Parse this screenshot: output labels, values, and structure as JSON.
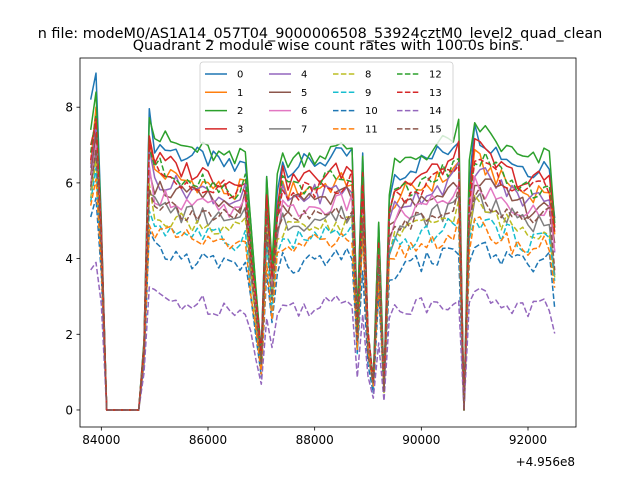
{
  "figure": {
    "suptitle": "n file: modeM0/AS1A14_057T04_9000006508_53924cztM0_level2_quad_clean",
    "subtitle": "Quadrant 2 module wise count rates with 100.0s bins.",
    "offset_label": "+4.956e8"
  },
  "chart_data": {
    "type": "line",
    "title": "Quadrant 2 module wise count rates with 100.0s bins.",
    "xlabel": "",
    "ylabel": "",
    "x_offset": 495600000,
    "xlim": [
      83600,
      92900
    ],
    "ylim": [
      -0.45,
      9.3
    ],
    "xticks": [
      84000,
      86000,
      88000,
      90000,
      92000
    ],
    "xtick_labels": [
      "84000",
      "86000",
      "88000",
      "90000",
      "92000"
    ],
    "yticks": [
      0,
      2,
      4,
      6,
      8
    ],
    "ytick_labels": [
      "0",
      "2",
      "4",
      "6",
      "8"
    ],
    "grid": false,
    "legend": {
      "placement": "top-center",
      "columns": 4
    },
    "segments": [
      {
        "x_start": 83800,
        "x_end": 84000,
        "step": 100,
        "count": 3
      },
      {
        "x_start": 84100,
        "x_end": 84700,
        "step": 100,
        "count": 7
      },
      {
        "x_start": 84800,
        "x_end": 92500,
        "step": 100,
        "count": 78
      }
    ],
    "series": [
      {
        "name": "0",
        "color": "#1f77b4",
        "dash": "solid",
        "level": 6.9,
        "seg1": [
          8.2,
          8.9,
          5.0
        ],
        "peak_factor": 1.0
      },
      {
        "name": "1",
        "color": "#ff7f0e",
        "dash": "solid",
        "level": 6.2,
        "seg1": [
          6.5,
          8.0,
          4.6
        ],
        "peak_factor": 0.95
      },
      {
        "name": "2",
        "color": "#2ca02c",
        "dash": "solid",
        "level": 7.1,
        "seg1": [
          7.4,
          8.4,
          4.9
        ],
        "peak_factor": 1.0
      },
      {
        "name": "3",
        "color": "#d62728",
        "dash": "solid",
        "level": 6.5,
        "seg1": [
          7.0,
          7.6,
          4.8
        ],
        "peak_factor": 0.97
      },
      {
        "name": "4",
        "color": "#9467bd",
        "dash": "solid",
        "level": 6.0,
        "seg1": [
          6.4,
          7.5,
          4.5
        ],
        "peak_factor": 0.95
      },
      {
        "name": "5",
        "color": "#8c564b",
        "dash": "solid",
        "level": 5.8,
        "seg1": [
          6.2,
          7.3,
          4.4
        ],
        "peak_factor": 0.95
      },
      {
        "name": "6",
        "color": "#e377c2",
        "dash": "solid",
        "level": 5.6,
        "seg1": [
          6.0,
          7.0,
          4.3
        ],
        "peak_factor": 0.95
      },
      {
        "name": "7",
        "color": "#7f7f7f",
        "dash": "solid",
        "level": 5.3,
        "seg1": [
          5.8,
          6.8,
          4.2
        ],
        "peak_factor": 0.95
      },
      {
        "name": "8",
        "color": "#bcbd22",
        "dash": "dashed",
        "level": 5.1,
        "seg1": [
          5.6,
          6.6,
          4.0
        ],
        "peak_factor": 0.93
      },
      {
        "name": "9",
        "color": "#17becf",
        "dash": "dashed",
        "level": 4.8,
        "seg1": [
          5.5,
          6.4,
          3.9
        ],
        "peak_factor": 0.93
      },
      {
        "name": "10",
        "color": "#1f77b4",
        "dash": "dashed",
        "level": 4.1,
        "seg1": [
          5.1,
          5.6,
          3.6
        ],
        "peak_factor": 0.9
      },
      {
        "name": "11",
        "color": "#ff7f0e",
        "dash": "dashed",
        "level": 4.6,
        "seg1": [
          5.4,
          6.1,
          3.8
        ],
        "peak_factor": 0.92
      },
      {
        "name": "12",
        "color": "#2ca02c",
        "dash": "dashed",
        "level": 6.3,
        "seg1": [
          6.8,
          7.8,
          4.7
        ],
        "peak_factor": 0.96
      },
      {
        "name": "13",
        "color": "#d62728",
        "dash": "dashed",
        "level": 6.2,
        "seg1": [
          6.6,
          7.7,
          4.6
        ],
        "peak_factor": 0.96
      },
      {
        "name": "14",
        "color": "#9467bd",
        "dash": "dashed",
        "level": 2.9,
        "seg1": [
          3.7,
          3.9,
          2.8
        ],
        "peak_factor": 0.85
      },
      {
        "name": "15",
        "color": "#8c564b",
        "dash": "dashed",
        "level": 5.4,
        "seg1": [
          5.9,
          6.9,
          4.2
        ],
        "peak_factor": 0.94
      }
    ],
    "profile": {
      "x": [
        84800,
        84900,
        85000,
        85500,
        86000,
        86500,
        86700,
        86800,
        86900,
        87000,
        87100,
        87200,
        87300,
        87400,
        87500,
        88000,
        88500,
        88700,
        88800,
        88900,
        89000,
        89100,
        89200,
        89300,
        89400,
        89500,
        90000,
        90500,
        90600,
        90700,
        90800,
        90900,
        91000,
        91500,
        92000,
        92400,
        92500
      ],
      "factor": [
        0.95,
        1.12,
        1.02,
        0.98,
        0.96,
        0.92,
        0.96,
        0.7,
        0.45,
        0.22,
        0.9,
        0.55,
        0.85,
        0.95,
        0.93,
        0.95,
        0.97,
        0.98,
        0.35,
        0.95,
        0.3,
        0.12,
        0.7,
        0.1,
        0.82,
        0.9,
        0.95,
        1.0,
        1.02,
        1.05,
        0.0,
        0.9,
        1.07,
        0.98,
        0.92,
        0.95,
        0.72
      ]
    }
  }
}
